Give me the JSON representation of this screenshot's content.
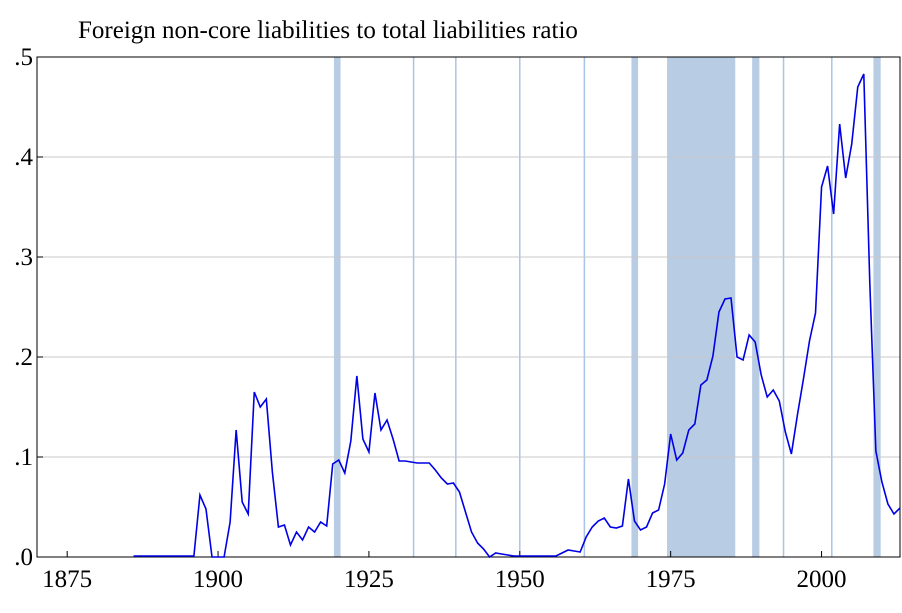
{
  "chart_data": {
    "type": "line",
    "title": "Foreign non-core liabilities to total liabilities ratio",
    "x": [
      1886,
      1887,
      1888,
      1889,
      1890,
      1891,
      1892,
      1893,
      1894,
      1895,
      1896,
      1897,
      1898,
      1899,
      1900,
      1901,
      1902,
      1903,
      1904,
      1905,
      1906,
      1907,
      1908,
      1909,
      1910,
      1911,
      1912,
      1913,
      1914,
      1915,
      1916,
      1917,
      1918,
      1919,
      1920,
      1921,
      1922,
      1923,
      1924,
      1925,
      1926,
      1927,
      1928,
      1929,
      1930,
      1931,
      1932,
      1933,
      1934,
      1935,
      1936,
      1937,
      1938,
      1939,
      1940,
      1941,
      1942,
      1943,
      1944,
      1945,
      1946,
      1947,
      1948,
      1949,
      1950,
      1951,
      1952,
      1953,
      1954,
      1955,
      1956,
      1957,
      1958,
      1959,
      1960,
      1961,
      1962,
      1963,
      1964,
      1965,
      1966,
      1967,
      1968,
      1969,
      1970,
      1971,
      1972,
      1973,
      1974,
      1975,
      1976,
      1977,
      1978,
      1979,
      1980,
      1981,
      1982,
      1983,
      1984,
      1985,
      1986,
      1987,
      1988,
      1989,
      1990,
      1991,
      1992,
      1993,
      1994,
      1995,
      1996,
      1997,
      1998,
      1999,
      2000,
      2001,
      2002,
      2003,
      2004,
      2005,
      2006,
      2007,
      2008,
      2009,
      2010,
      2011,
      2012,
      2013
    ],
    "series": [
      {
        "color": "#0000e6",
        "values": [
          0.001,
          0.001,
          0.001,
          0.001,
          0.001,
          0.001,
          0.001,
          0.001,
          0.001,
          0.001,
          0.001,
          0.062,
          0.048,
          0,
          0,
          0,
          0.035,
          0.127,
          0.055,
          0.043,
          0.165,
          0.15,
          0.158,
          0.085,
          0.03,
          0.032,
          0.012,
          0.025,
          0.017,
          0.03,
          0.025,
          0.035,
          0.031,
          0.093,
          0.097,
          0.084,
          0.116,
          0.181,
          0.118,
          0.105,
          0.164,
          0.127,
          0.137,
          0.118,
          0.096,
          0.096,
          0.095,
          0.094,
          0.094,
          0.094,
          0.087,
          0.079,
          0.073,
          0.074,
          0.065,
          0.045,
          0.025,
          0.014,
          0.008,
          0,
          0.004,
          0.003,
          0.002,
          0.001,
          0.001,
          0.001,
          0.001,
          0.001,
          0.001,
          0.001,
          0.001,
          0.004,
          0.007,
          0.006,
          0.005,
          0.02,
          0.03,
          0.036,
          0.039,
          0.03,
          0.029,
          0.031,
          0.078,
          0.036,
          0.027,
          0.03,
          0.044,
          0.047,
          0.073,
          0.123,
          0.097,
          0.104,
          0.127,
          0.133,
          0.172,
          0.177,
          0.201,
          0.245,
          0.258,
          0.259,
          0.2,
          0.197,
          0.222,
          0.215,
          0.182,
          0.16,
          0.167,
          0.156,
          0.125,
          0.103,
          0.142,
          0.178,
          0.216,
          0.244,
          0.37,
          0.391,
          0.343,
          0.433,
          0.379,
          0.413,
          0.47,
          0.483,
          0.273,
          0.106,
          0.075,
          0.053,
          0.043,
          0.049
        ]
      }
    ],
    "shaded_periods": [
      {
        "start": 1919.2,
        "end": 1920.3
      },
      {
        "start": 1932.4,
        "end": 1932.4
      },
      {
        "start": 1939.4,
        "end": 1939.4
      },
      {
        "start": 1950,
        "end": 1950
      },
      {
        "start": 1960.7,
        "end": 1960.7
      },
      {
        "start": 1968.5,
        "end": 1969.6
      },
      {
        "start": 1974.4,
        "end": 1985.7
      },
      {
        "start": 1988.5,
        "end": 1989.7
      },
      {
        "start": 1993.7,
        "end": 1993.7
      },
      {
        "start": 2001.7,
        "end": 2001.7
      },
      {
        "start": 2008.6,
        "end": 2009.8
      }
    ],
    "shade_color": "#b8cce4",
    "xlim": [
      1870,
      2013
    ],
    "xticks": [
      1875,
      1900,
      1925,
      1950,
      1975,
      2000
    ],
    "ylim": [
      0,
      0.5
    ],
    "yticks": [
      {
        "value": 0,
        "label": ".0"
      },
      {
        "value": 0.1,
        "label": ".1"
      },
      {
        "value": 0.2,
        "label": ".2"
      },
      {
        "value": 0.3,
        "label": ".3"
      },
      {
        "value": 0.4,
        "label": ".4"
      },
      {
        "value": 0.5,
        "label": ".5"
      }
    ],
    "grid": true
  }
}
